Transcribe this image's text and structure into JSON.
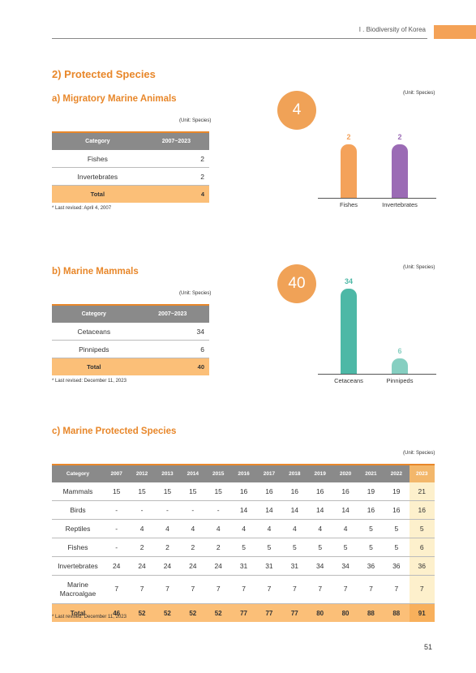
{
  "header": {
    "chapter": "I . Biodiversity of Korea"
  },
  "page_title": "2) Protected Species",
  "section_a": {
    "title": "a) Migratory Marine Animals",
    "unit": "(Unit: Species)",
    "chart_unit": "(Unit: Species)",
    "headers": [
      "Category",
      "2007~2023"
    ],
    "rows": [
      [
        "Fishes",
        "2"
      ],
      [
        "Invertebrates",
        "2"
      ]
    ],
    "total": [
      "Total",
      "4"
    ],
    "note": "* Last revised: April 4, 2007",
    "total_badge": "4"
  },
  "section_b": {
    "title": "b) Marine Mammals",
    "unit": "(Unit: Species)",
    "chart_unit": "(Unit: Species)",
    "headers": [
      "Category",
      "2007~2023"
    ],
    "rows": [
      [
        "Cetaceans",
        "34"
      ],
      [
        "Pinnipeds",
        "6"
      ]
    ],
    "total": [
      "Total",
      "40"
    ],
    "note": "* Last revised: December 11, 2023",
    "total_badge": "40"
  },
  "section_c": {
    "title": "c) Marine Protected Species",
    "unit": "(Unit: Species)",
    "headers": [
      "Category",
      "2007",
      "2012",
      "2013",
      "2014",
      "2015",
      "2016",
      "2017",
      "2018",
      "2019",
      "2020",
      "2021",
      "2022",
      "2023"
    ],
    "rows": [
      [
        "Mammals",
        "15",
        "15",
        "15",
        "15",
        "15",
        "16",
        "16",
        "16",
        "16",
        "16",
        "19",
        "19",
        "21"
      ],
      [
        "Birds",
        "-",
        "-",
        "-",
        "-",
        "-",
        "14",
        "14",
        "14",
        "14",
        "14",
        "16",
        "16",
        "16"
      ],
      [
        "Reptiles",
        "-",
        "4",
        "4",
        "4",
        "4",
        "4",
        "4",
        "4",
        "4",
        "4",
        "5",
        "5",
        "5"
      ],
      [
        "Fishes",
        "-",
        "2",
        "2",
        "2",
        "2",
        "5",
        "5",
        "5",
        "5",
        "5",
        "5",
        "5",
        "6"
      ],
      [
        "Invertebrates",
        "24",
        "24",
        "24",
        "24",
        "24",
        "31",
        "31",
        "31",
        "34",
        "34",
        "36",
        "36",
        "36"
      ],
      [
        "Marine Macroalgae",
        "7",
        "7",
        "7",
        "7",
        "7",
        "7",
        "7",
        "7",
        "7",
        "7",
        "7",
        "7",
        "7"
      ]
    ],
    "total": [
      "Total",
      "46",
      "52",
      "52",
      "52",
      "52",
      "77",
      "77",
      "77",
      "80",
      "80",
      "88",
      "88",
      "91"
    ],
    "note": "* Last revised: December 11, 2023"
  },
  "chart_data": [
    {
      "type": "bar",
      "categories": [
        "Fishes",
        "Invertebrates"
      ],
      "values": [
        2,
        2
      ],
      "colors": [
        "#f4a25a",
        "#9b6bb5"
      ],
      "ylim": [
        0,
        2
      ]
    },
    {
      "type": "bar",
      "categories": [
        "Cetaceans",
        "Pinnipeds"
      ],
      "values": [
        34,
        6
      ],
      "colors": [
        "#4db8a6",
        "#86cfc1"
      ],
      "ylim": [
        0,
        34
      ]
    }
  ],
  "page_number": "51"
}
